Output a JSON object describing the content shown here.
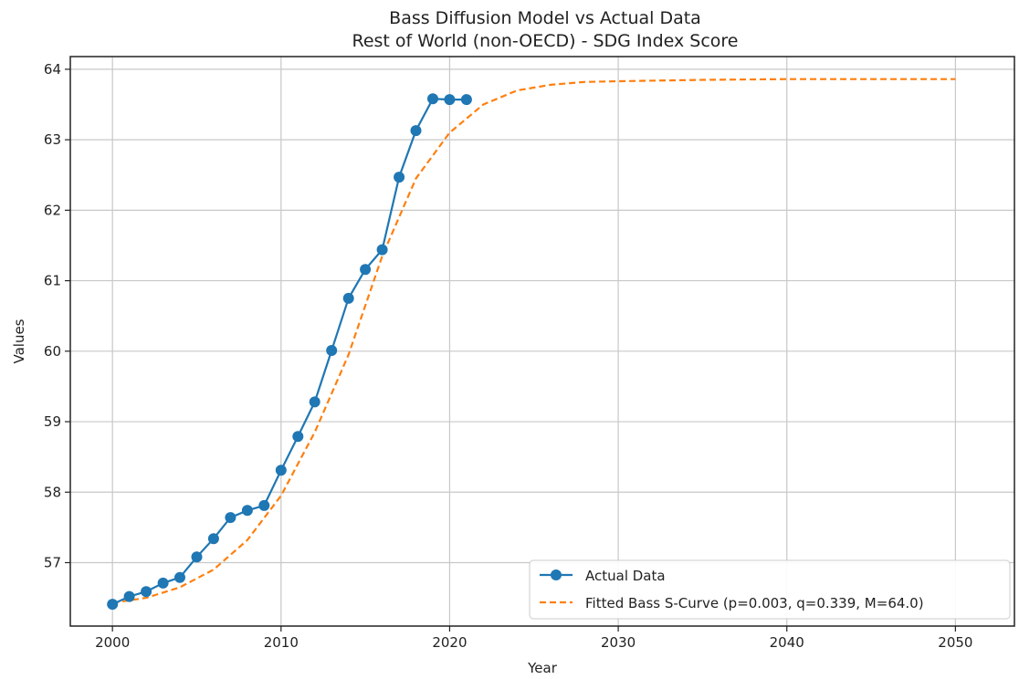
{
  "chart_data": {
    "type": "line",
    "title": "Bass Diffusion Model vs Actual Data",
    "subtitle": "Rest of World (non-OECD) - SDG Index Score",
    "xlabel": "Year",
    "ylabel": "Values",
    "xlim": [
      1997.5,
      2053.5
    ],
    "ylim": [
      56.1,
      64.18
    ],
    "xticks": [
      2000,
      2010,
      2020,
      2030,
      2040,
      2050
    ],
    "yticks": [
      57,
      58,
      59,
      60,
      61,
      62,
      63,
      64
    ],
    "grid": true,
    "legend_position": "bottom-right",
    "series": [
      {
        "name": "Actual Data",
        "style": "solid-with-markers",
        "color": "#1f77b4",
        "x": [
          2000,
          2001,
          2002,
          2003,
          2004,
          2005,
          2006,
          2007,
          2008,
          2009,
          2010,
          2011,
          2012,
          2013,
          2014,
          2015,
          2016,
          2017,
          2018,
          2019,
          2020,
          2021
        ],
        "y": [
          56.41,
          56.52,
          56.59,
          56.71,
          56.79,
          57.08,
          57.34,
          57.64,
          57.74,
          57.81,
          58.31,
          58.79,
          59.28,
          60.01,
          60.75,
          61.16,
          61.44,
          62.47,
          63.13,
          63.58,
          63.57,
          63.57
        ]
      },
      {
        "name": "Fitted Bass S-Curve (p=0.003, q=0.339, M=64.0)",
        "style": "dashed",
        "color": "#ff7f0e",
        "x": [
          2000,
          2002,
          2004,
          2006,
          2008,
          2010,
          2012,
          2014,
          2016,
          2018,
          2020,
          2022,
          2024,
          2026,
          2028,
          2030,
          2035,
          2040,
          2045,
          2050
        ],
        "y": [
          56.43,
          56.5,
          56.65,
          56.9,
          57.32,
          57.95,
          58.85,
          59.95,
          61.35,
          62.45,
          63.1,
          63.5,
          63.7,
          63.78,
          63.82,
          63.83,
          63.85,
          63.86,
          63.86,
          63.86
        ]
      }
    ]
  }
}
